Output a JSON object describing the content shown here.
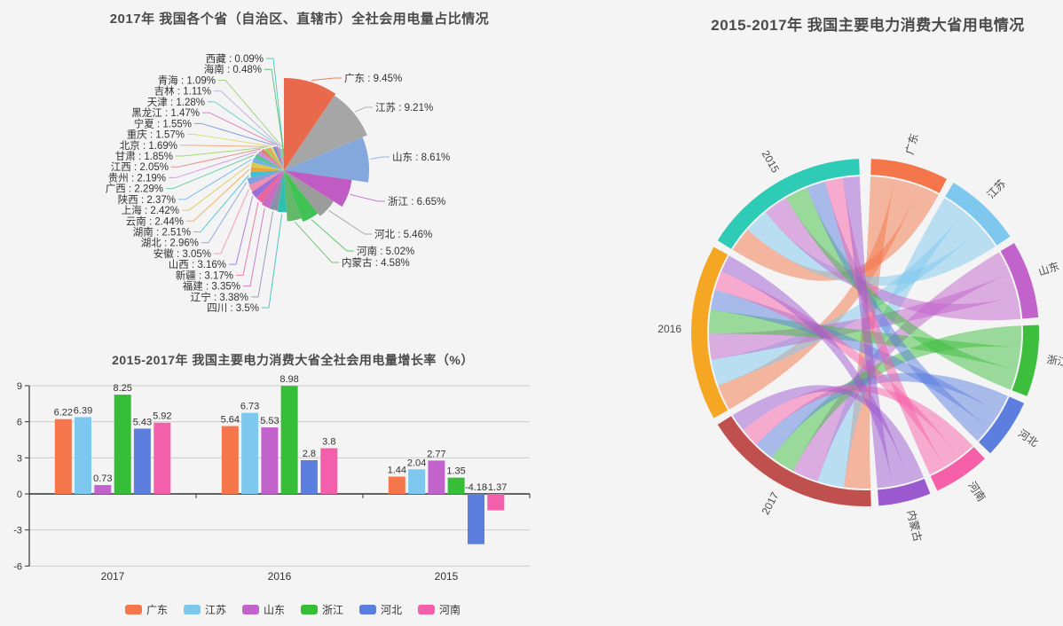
{
  "background": "#f4f4f4",
  "chart_data": [
    {
      "id": "province-share-pie",
      "type": "pie",
      "rose": true,
      "title": "2017年 我国各个省（自治区、直辖市）全社会用电量占比情况",
      "unit": "%",
      "label_format": "名称 : 数值%",
      "series": [
        {
          "name": "广东",
          "value": 9.45,
          "color": "#e8694b"
        },
        {
          "name": "江苏",
          "value": 9.21,
          "color": "#a6a6a6"
        },
        {
          "name": "山东",
          "value": 8.61,
          "color": "#84a8dc"
        },
        {
          "name": "浙江",
          "value": 6.65,
          "color": "#c05bc4"
        },
        {
          "name": "河北",
          "value": 5.46,
          "color": "#9c9c9c"
        },
        {
          "name": "河南",
          "value": 5.02,
          "color": "#41c254"
        },
        {
          "name": "内蒙古",
          "value": 4.58,
          "color": "#64b86a"
        },
        {
          "name": "四川",
          "value": 3.5,
          "color": "#2fbfae"
        },
        {
          "name": "辽宁",
          "value": 3.38,
          "color": "#8b8fa8"
        },
        {
          "name": "福建",
          "value": 3.35,
          "color": "#c969c4"
        },
        {
          "name": "新疆",
          "value": 3.17,
          "color": "#e8659d"
        },
        {
          "name": "山西",
          "value": 3.16,
          "color": "#9a6fd8"
        },
        {
          "name": "安徽",
          "value": 3.05,
          "color": "#ef8fb2"
        },
        {
          "name": "湖北",
          "value": 2.96,
          "color": "#7f9fdf"
        },
        {
          "name": "湖南",
          "value": 2.51,
          "color": "#3fc0d0"
        },
        {
          "name": "云南",
          "value": 2.44,
          "color": "#f0a13d"
        },
        {
          "name": "上海",
          "value": 2.42,
          "color": "#d9c94f"
        },
        {
          "name": "陕西",
          "value": 2.37,
          "color": "#6fb3e8"
        },
        {
          "name": "广西",
          "value": 2.29,
          "color": "#56c596"
        },
        {
          "name": "贵州",
          "value": 2.19,
          "color": "#c98fd8"
        },
        {
          "name": "江西",
          "value": 2.05,
          "color": "#e07f7f"
        },
        {
          "name": "甘肃",
          "value": 1.85,
          "color": "#8fd858"
        },
        {
          "name": "北京",
          "value": 1.69,
          "color": "#f29a6b"
        },
        {
          "name": "重庆",
          "value": 1.57,
          "color": "#d8d86a"
        },
        {
          "name": "宁夏",
          "value": 1.55,
          "color": "#6a8fd8"
        },
        {
          "name": "黑龙江",
          "value": 1.47,
          "color": "#e070b5"
        },
        {
          "name": "天津",
          "value": 1.28,
          "color": "#5fc9c0"
        },
        {
          "name": "吉林",
          "value": 1.11,
          "color": "#b5a6e0"
        },
        {
          "name": "青海",
          "value": 1.09,
          "color": "#8fcf6f"
        },
        {
          "name": "海南",
          "value": 0.48,
          "color": "#4fb86a"
        },
        {
          "name": "西藏",
          "value": 0.09,
          "color": "#3ec5b0"
        }
      ]
    },
    {
      "id": "growth-rate-bar",
      "type": "bar",
      "title": "2015-2017年 我国主要电力消费大省全社会用电量增长率（%）",
      "categories": [
        "2017",
        "2016",
        "2015"
      ],
      "series": [
        {
          "name": "广东",
          "color": "#f4764a",
          "values": [
            6.22,
            5.64,
            1.44
          ]
        },
        {
          "name": "江苏",
          "color": "#7ec8f0",
          "values": [
            6.39,
            6.73,
            2.04
          ]
        },
        {
          "name": "山东",
          "color": "#c263cb",
          "values": [
            0.73,
            5.53,
            2.77
          ]
        },
        {
          "name": "浙江",
          "color": "#36be39",
          "values": [
            8.25,
            8.98,
            1.35
          ]
        },
        {
          "name": "河北",
          "color": "#5c7fdf",
          "values": [
            5.43,
            2.8,
            -4.18
          ]
        },
        {
          "name": "河南",
          "color": "#f35fab",
          "values": [
            5.92,
            3.8,
            -1.37
          ]
        }
      ],
      "ylim": [
        -6,
        9
      ],
      "yticks": [
        9,
        6,
        3,
        0,
        -3,
        -6
      ],
      "grid": true,
      "legend_position": "bottom"
    },
    {
      "id": "consumption-chord",
      "type": "chord",
      "title": "2015-2017年 我国主要电力消费大省用电情况",
      "nodes": [
        {
          "name": "广东",
          "color": "#f4764a",
          "arc_span_deg": 26
        },
        {
          "name": "江苏",
          "color": "#7ec8f0",
          "arc_span_deg": 26
        },
        {
          "name": "山东",
          "color": "#c263cb",
          "arc_span_deg": 26
        },
        {
          "name": "浙江",
          "color": "#3dbe3d",
          "arc_span_deg": 24
        },
        {
          "name": "河北",
          "color": "#5c7fdf",
          "arc_span_deg": 20
        },
        {
          "name": "河南",
          "color": "#f660a8",
          "arc_span_deg": 19
        },
        {
          "name": "内蒙古",
          "color": "#9b59d0",
          "arc_span_deg": 17.5
        },
        {
          "name": "2017",
          "color": "#c0504d",
          "arc_span_deg": 60
        },
        {
          "name": "2016",
          "color": "#f5a623",
          "arc_span_deg": 59
        },
        {
          "name": "2015",
          "color": "#2eccb6",
          "arc_span_deg": 56
        }
      ],
      "links_note": "每个年份弧段与全部7个省份弧段相连的彩带"
    }
  ]
}
